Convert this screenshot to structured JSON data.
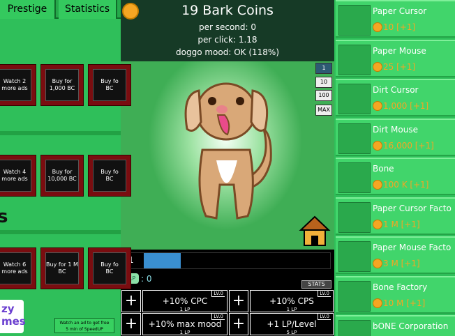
{
  "left_panel": {
    "tabs": [
      "Prestige",
      "Statistics"
    ],
    "ad_rows": [
      [
        [
          "Watch 2",
          "more ads"
        ],
        [
          "Buy for",
          "1,000 BC"
        ],
        [
          "Buy fo",
          "BC"
        ]
      ],
      [
        [
          "Watch 4",
          "more ads"
        ],
        [
          "Buy for",
          "10,000 BC"
        ],
        [
          "Buy fo",
          "BC"
        ]
      ],
      [
        [
          "Watch 6",
          "more ads"
        ],
        [
          "Buy for 1 M",
          "BC"
        ],
        [
          "Buy fo",
          "BC"
        ]
      ]
    ],
    "side_letter": "s",
    "logo": [
      "zy",
      "mes"
    ],
    "speedup_button": [
      "Watch an ad to get free",
      "5 min of SpeedUP"
    ]
  },
  "header": {
    "coins": "19 Bark Coins",
    "per_second": "per second: 0",
    "per_click": "per click: 1.18",
    "mood": "doggo mood: OK (118%)"
  },
  "buy_amounts": [
    "1",
    "10",
    "100",
    "MAX"
  ],
  "level": {
    "number": "1",
    "lp_badge": "LP",
    "lp_value": ": 0",
    "stats_button": "STATS"
  },
  "upgrades": [
    {
      "label": "+10% CPC",
      "level": "LV.0",
      "cost": "1 LP"
    },
    {
      "label": "+10% CPS",
      "level": "LV.0",
      "cost": "1 LP"
    },
    {
      "label": "+10% max mood",
      "level": "LV.0",
      "cost": "1 LP"
    },
    {
      "label": "+1 LP/Level",
      "level": "LV.0",
      "cost": "5 LP"
    }
  ],
  "upgrade_plus": "+",
  "store": [
    {
      "name": "Paper Cursor",
      "cost": "10 [+1]"
    },
    {
      "name": "Paper Mouse",
      "cost": "25 [+1]"
    },
    {
      "name": "Dirt Cursor",
      "cost": "1,000 [+1]"
    },
    {
      "name": "Dirt Mouse",
      "cost": "16,000 [+1]"
    },
    {
      "name": "Bone",
      "cost": "100 K [+1]"
    },
    {
      "name": "Paper Cursor Facto",
      "cost": "1 M [+1]"
    },
    {
      "name": "Paper Mouse Facto",
      "cost": "3 M [+1]"
    },
    {
      "name": "Bone Factory",
      "cost": "10 M [+1]"
    },
    {
      "name": "bONE Corporation"
    }
  ]
}
